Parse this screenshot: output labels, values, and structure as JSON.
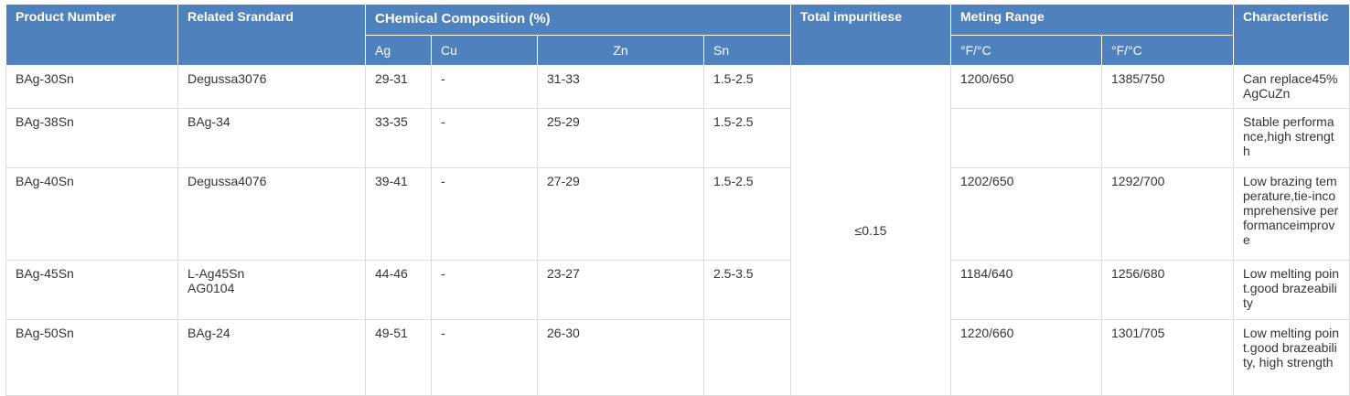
{
  "headers": {
    "product_number": "Product Number",
    "related_standard": "Related Srandard",
    "chemical_composition": "CHemical Composition  (%)",
    "total_impurities": "Total impuritiese",
    "melting_range": "Meting Range",
    "characteristic": "Characteristic",
    "ag": "Ag",
    "cu": "Cu",
    "zn": "Zn",
    "sn": "Sn",
    "melt_col1": "°F/°C",
    "melt_col2": "°F/°C"
  },
  "total_impurities_value": "≤0.15",
  "rows": [
    {
      "product": "BAg-30Sn",
      "standard": [
        "Degussa3076"
      ],
      "ag": "29-31",
      "cu": "-",
      "zn": "31-33",
      "sn": "1.5-2.5",
      "melt1": "1200/650",
      "melt2": "1385/750",
      "characteristic": "Can replace45%AgCuZn"
    },
    {
      "product": "BAg-38Sn",
      "standard": [
        "BAg-34"
      ],
      "ag": "33-35",
      "cu": "-",
      "zn": "25-29",
      "sn": "1.5-2.5",
      "melt1": "",
      "melt2": "",
      "characteristic": "Stable performance,high strength"
    },
    {
      "product": "BAg-40Sn",
      "standard": [
        "Degussa4076"
      ],
      "ag": "39-41",
      "cu": "-",
      "zn": "27-29",
      "sn": "1.5-2.5",
      "melt1": "1202/650",
      "melt2": "1292/700",
      "characteristic": "Low brazing temperature,tie-incomprehensive performanceimprove"
    },
    {
      "product": "BAg-45Sn",
      "standard": [
        "L-Ag45Sn",
        "AG0104"
      ],
      "ag": "44-46",
      "cu": "-",
      "zn": "23-27",
      "sn": "2.5-3.5",
      "melt1": "1184/640",
      "melt2": "1256/680",
      "characteristic": "Low melting point.good brazeability"
    },
    {
      "product": "BAg-50Sn",
      "standard": [
        "BAg-24"
      ],
      "ag": "49-51",
      "cu": "-",
      "zn": "26-30",
      "sn": "",
      "melt1": "1220/660",
      "melt2": "1301/705",
      "characteristic": "Low melting point.good brazeability, high strength"
    }
  ]
}
